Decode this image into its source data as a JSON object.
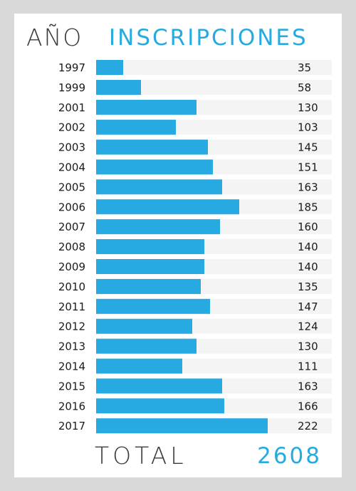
{
  "header": {
    "year_label": "AÑO",
    "value_label": "INSCRIPCIONES"
  },
  "footer": {
    "total_label": "TOTAL",
    "total_value": "2608"
  },
  "colors": {
    "bar": "#27a9e1",
    "track": "#f4f4f4",
    "text": "#1a1a1a",
    "background": "#d9d9d9"
  },
  "chart_data": {
    "type": "bar",
    "orientation": "horizontal",
    "categories": [
      "1997",
      "1999",
      "2001",
      "2002",
      "2003",
      "2004",
      "2005",
      "2006",
      "2007",
      "2008",
      "2009",
      "2010",
      "2011",
      "2012",
      "2013",
      "2014",
      "2015",
      "2016",
      "2017"
    ],
    "values": [
      35,
      58,
      130,
      103,
      145,
      151,
      163,
      185,
      160,
      140,
      140,
      135,
      147,
      124,
      130,
      111,
      163,
      166,
      222
    ],
    "xlabel": "INSCRIPCIONES",
    "ylabel": "AÑO",
    "xlim": [
      0,
      305
    ]
  }
}
